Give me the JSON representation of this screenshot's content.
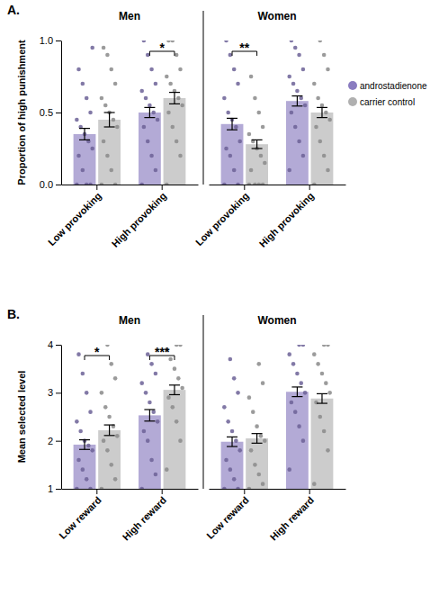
{
  "chart_data": {
    "type": "bar",
    "legend": "right",
    "series": [
      {
        "name": "androstadienone",
        "color": "#8a7cc0"
      },
      {
        "name": "carrier control",
        "color": "#b0b0b0"
      }
    ],
    "panels": [
      {
        "title": "A.",
        "y_label": "Proportion of high punishment",
        "ylim": [
          0,
          1
        ],
        "yticks": [
          {
            "value": 0,
            "label": "0.0"
          },
          {
            "value": 0.5,
            "label": "0.5"
          },
          {
            "value": 1,
            "label": "1.0"
          }
        ],
        "facets": [
          {
            "title": "Men",
            "categories": [
              "Low provoking",
              "High provoking"
            ],
            "series": [
              {
                "values": [
                  0.35,
                  0.5
                ],
                "errors": [
                  0.04,
                  0.035
                ],
                "points": [
                  [
                    0,
                    0,
                    0,
                    0.1,
                    0.2,
                    0.25,
                    0.3,
                    0.35,
                    0.4,
                    0.45,
                    0.5,
                    0.6,
                    0.7,
                    0.8,
                    0.95
                  ],
                  [
                    0,
                    0.1,
                    0.2,
                    0.3,
                    0.4,
                    0.45,
                    0.5,
                    0.55,
                    0.6,
                    0.65,
                    0.7,
                    0.8,
                    0.9,
                    1.0
                  ]
                ]
              },
              {
                "values": [
                  0.45,
                  0.6
                ],
                "errors": [
                  0.05,
                  0.04
                ],
                "points": [
                  [
                    0,
                    0,
                    0.1,
                    0.2,
                    0.3,
                    0.4,
                    0.45,
                    0.5,
                    0.55,
                    0.6,
                    0.7,
                    0.8,
                    0.9,
                    0.95
                  ],
                  [
                    0,
                    0.2,
                    0.3,
                    0.4,
                    0.5,
                    0.55,
                    0.6,
                    0.65,
                    0.7,
                    0.75,
                    0.8,
                    0.9,
                    1.0,
                    1.0
                  ]
                ]
              }
            ],
            "annotations": [
              {
                "category": 1,
                "text": "*"
              }
            ]
          },
          {
            "title": "Women",
            "categories": [
              "Low provoking",
              "High provoking"
            ],
            "series": [
              {
                "values": [
                  0.42,
                  0.58
                ],
                "errors": [
                  0.04,
                  0.035
                ],
                "points": [
                  [
                    0,
                    0,
                    0.1,
                    0.2,
                    0.25,
                    0.3,
                    0.4,
                    0.45,
                    0.5,
                    0.6,
                    0.7,
                    0.8,
                    0.9,
                    1.0
                  ],
                  [
                    0.1,
                    0.2,
                    0.3,
                    0.4,
                    0.5,
                    0.55,
                    0.6,
                    0.65,
                    0.7,
                    0.75,
                    0.8,
                    0.9,
                    0.95,
                    1.0
                  ]
                ]
              },
              {
                "values": [
                  0.28,
                  0.5
                ],
                "errors": [
                  0.03,
                  0.035
                ],
                "points": [
                  [
                    0,
                    0,
                    0,
                    0,
                    0.1,
                    0.15,
                    0.2,
                    0.25,
                    0.3,
                    0.35,
                    0.4,
                    0.5,
                    0.6,
                    0.75
                  ],
                  [
                    0,
                    0.1,
                    0.2,
                    0.3,
                    0.4,
                    0.45,
                    0.5,
                    0.55,
                    0.6,
                    0.7,
                    0.8,
                    0.9,
                    1.0
                  ]
                ]
              }
            ],
            "annotations": [
              {
                "category": 0,
                "text": "**"
              }
            ]
          }
        ]
      },
      {
        "title": "B.",
        "y_label": "Mean selected level",
        "ylim": [
          1,
          4
        ],
        "yticks": [
          1,
          2,
          3,
          4
        ],
        "facets": [
          {
            "title": "Men",
            "categories": [
              "Low reward",
              "High reward"
            ],
            "series": [
              {
                "values": [
                  1.92,
                  2.53
                ],
                "errors": [
                  0.1,
                  0.12
                ],
                "points": [
                  [
                    1,
                    1,
                    1.2,
                    1.4,
                    1.6,
                    1.8,
                    1.9,
                    2,
                    2.2,
                    2.4,
                    2.6,
                    3,
                    3.4,
                    3.8
                  ],
                  [
                    1,
                    1.3,
                    1.6,
                    2,
                    2.2,
                    2.4,
                    2.6,
                    2.8,
                    3,
                    3.2,
                    3.4,
                    3.6,
                    3.8
                  ]
                ]
              },
              {
                "values": [
                  2.22,
                  3.06
                ],
                "errors": [
                  0.11,
                  0.1
                ],
                "points": [
                  [
                    1,
                    1.2,
                    1.5,
                    1.8,
                    2,
                    2.1,
                    2.3,
                    2.5,
                    2.7,
                    3,
                    3.3,
                    3.6,
                    4
                  ],
                  [
                    1.4,
                    2,
                    2.4,
                    2.7,
                    2.9,
                    3.1,
                    3.3,
                    3.5,
                    3.7,
                    3.9,
                    4,
                    4
                  ]
                ]
              }
            ],
            "annotations": [
              {
                "category": 0,
                "text": "*"
              },
              {
                "category": 1,
                "text": "***"
              }
            ]
          },
          {
            "title": "Women",
            "categories": [
              "Low reward",
              "High reward"
            ],
            "series": [
              {
                "values": [
                  1.98,
                  3.02
                ],
                "errors": [
                  0.1,
                  0.1
                ],
                "points": [
                  [
                    1,
                    1,
                    1.2,
                    1.4,
                    1.6,
                    1.8,
                    2,
                    2.2,
                    2.4,
                    2.7,
                    3,
                    3.3,
                    3.7
                  ],
                  [
                    1.4,
                    2,
                    2.3,
                    2.6,
                    2.8,
                    3,
                    3.2,
                    3.4,
                    3.6,
                    3.8,
                    4,
                    4
                  ]
                ]
              },
              {
                "values": [
                  2.05,
                  2.88
                ],
                "errors": [
                  0.1,
                  0.1
                ],
                "points": [
                  [
                    1,
                    1.1,
                    1.3,
                    1.5,
                    1.8,
                    2,
                    2.1,
                    2.3,
                    2.6,
                    2.9,
                    3.2,
                    3.6
                  ],
                  [
                    1.1,
                    1.8,
                    2.2,
                    2.5,
                    2.8,
                    3,
                    3.2,
                    3.4,
                    3.6,
                    3.8,
                    4,
                    4
                  ]
                ]
              }
            ]
          }
        ]
      }
    ]
  }
}
